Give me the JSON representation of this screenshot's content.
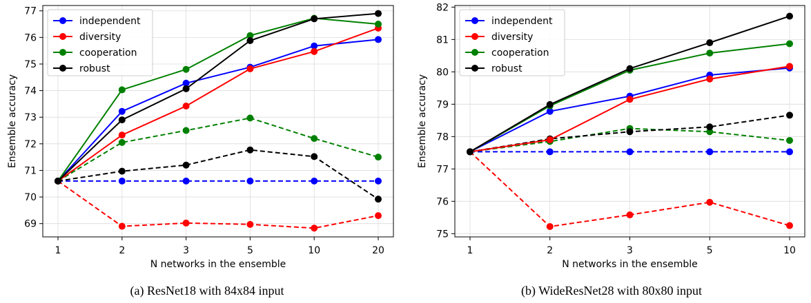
{
  "colors": {
    "independent": "#0000ff",
    "diversity": "#ff0000",
    "cooperation": "#008000",
    "robust": "#000000",
    "grid": "#dcdcdc"
  },
  "chart_data": [
    {
      "type": "line",
      "caption": "(a) ResNet18 with 84x84 input",
      "xlabel": "N networks in the ensemble",
      "ylabel": "Ensemble accuracy",
      "categories": [
        "1",
        "2",
        "3",
        "5",
        "10",
        "20"
      ],
      "ylim": [
        68.5,
        77.2
      ],
      "yticks": [
        69,
        70,
        71,
        72,
        73,
        74,
        75,
        76,
        77
      ],
      "grid": true,
      "legend_position": "top-left",
      "legend": [
        "independent",
        "diversity",
        "cooperation",
        "robust"
      ],
      "series": [
        {
          "name": "independent",
          "style": "solid",
          "color": "#0000ff",
          "values": [
            70.6,
            73.22,
            74.28,
            74.88,
            75.68,
            75.92
          ]
        },
        {
          "name": "diversity",
          "style": "solid",
          "color": "#ff0000",
          "values": [
            70.6,
            72.33,
            73.42,
            74.82,
            75.47,
            76.35
          ]
        },
        {
          "name": "cooperation",
          "style": "solid",
          "color": "#008000",
          "values": [
            70.6,
            74.03,
            74.8,
            76.07,
            76.72,
            76.5
          ]
        },
        {
          "name": "robust",
          "style": "solid",
          "color": "#000000",
          "values": [
            70.6,
            72.9,
            74.07,
            75.88,
            76.7,
            76.9
          ]
        },
        {
          "name": "independent",
          "style": "dashed",
          "color": "#0000ff",
          "values": [
            70.6,
            70.6,
            70.6,
            70.6,
            70.6,
            70.6
          ]
        },
        {
          "name": "diversity",
          "style": "dashed",
          "color": "#ff0000",
          "values": [
            70.6,
            68.9,
            69.02,
            68.97,
            68.83,
            69.3
          ]
        },
        {
          "name": "cooperation",
          "style": "dashed",
          "color": "#008000",
          "values": [
            70.6,
            72.05,
            72.5,
            72.97,
            72.2,
            71.5
          ]
        },
        {
          "name": "robust",
          "style": "dashed",
          "color": "#000000",
          "values": [
            70.6,
            70.97,
            71.2,
            71.77,
            71.52,
            69.92
          ]
        }
      ]
    },
    {
      "type": "line",
      "caption": "(b) WideResNet28 with 80x80 input",
      "xlabel": "N networks in the ensemble",
      "ylabel": "Ensemble accuracy",
      "categories": [
        "1",
        "2",
        "3",
        "5",
        "10"
      ],
      "ylim": [
        74.9,
        82.05
      ],
      "yticks": [
        75,
        76,
        77,
        78,
        79,
        80,
        81,
        82
      ],
      "grid": true,
      "legend_position": "top-left",
      "legend": [
        "independent",
        "diversity",
        "cooperation",
        "robust"
      ],
      "series": [
        {
          "name": "independent",
          "style": "solid",
          "color": "#0000ff",
          "values": [
            77.53,
            78.78,
            79.25,
            79.9,
            80.12
          ]
        },
        {
          "name": "diversity",
          "style": "solid",
          "color": "#ff0000",
          "values": [
            77.53,
            77.9,
            79.15,
            79.78,
            80.17
          ]
        },
        {
          "name": "cooperation",
          "style": "solid",
          "color": "#008000",
          "values": [
            77.53,
            78.95,
            80.05,
            80.58,
            80.87
          ]
        },
        {
          "name": "robust",
          "style": "solid",
          "color": "#000000",
          "values": [
            77.53,
            78.99,
            80.1,
            80.9,
            81.72
          ]
        },
        {
          "name": "independent",
          "style": "dashed",
          "color": "#0000ff",
          "values": [
            77.53,
            77.53,
            77.53,
            77.53,
            77.53
          ]
        },
        {
          "name": "diversity",
          "style": "dashed",
          "color": "#ff0000",
          "values": [
            77.53,
            75.22,
            75.58,
            75.97,
            75.25
          ]
        },
        {
          "name": "cooperation",
          "style": "dashed",
          "color": "#008000",
          "values": [
            77.53,
            77.85,
            78.25,
            78.15,
            77.88
          ]
        },
        {
          "name": "robust",
          "style": "dashed",
          "color": "#000000",
          "values": [
            77.53,
            77.93,
            78.15,
            78.3,
            78.66
          ]
        }
      ]
    }
  ]
}
